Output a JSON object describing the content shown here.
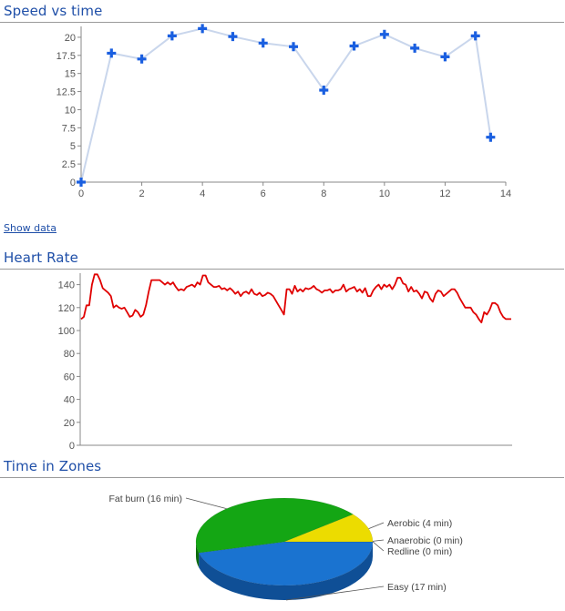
{
  "sections": {
    "speed": {
      "title": "Speed vs time",
      "show_data_label": "Show data"
    },
    "heart": {
      "title": "Heart Rate"
    },
    "zones": {
      "title": "Time in Zones"
    }
  },
  "colors": {
    "title": "#1f4fa8",
    "speed_line": "#c9d6ec",
    "speed_marker": "#1a5fe0",
    "heart_line": "#e00000",
    "axis": "#888888",
    "zone_fatburn": "#14a614",
    "zone_aerobic": "#ecdc00",
    "zone_easy": "#1a73d0"
  },
  "chart_data": [
    {
      "type": "line",
      "title": "Speed vs time",
      "x": [
        0,
        1,
        2,
        3,
        4,
        5,
        6,
        7,
        8,
        9,
        10,
        11,
        12,
        13,
        13.5
      ],
      "series": [
        {
          "values": [
            0,
            17.8,
            17.0,
            20.2,
            21.2,
            20.1,
            19.2,
            18.7,
            12.7,
            18.8,
            20.4,
            18.5,
            17.3,
            20.2,
            6.2
          ]
        }
      ],
      "xlim": [
        0,
        14
      ],
      "ylim": [
        0,
        21.5
      ],
      "xticks": [
        0,
        2,
        4,
        6,
        8,
        10,
        12,
        14
      ],
      "yticks": [
        "0",
        "2.5",
        "5",
        "7.5",
        "10",
        "12.5",
        "15",
        "17.5",
        "20"
      ],
      "marker": "plus",
      "grid": false
    },
    {
      "type": "line",
      "title": "Heart Rate",
      "series": [
        {
          "values": [
            110,
            112,
            122,
            122,
            140,
            149,
            149,
            144,
            137,
            135,
            133,
            130,
            120,
            122,
            120,
            119,
            120,
            116,
            112,
            113,
            118,
            116,
            112,
            114,
            122,
            134,
            144,
            144,
            144,
            144,
            142,
            140,
            142,
            140,
            142,
            138,
            135,
            136,
            135,
            138,
            139,
            140,
            138,
            142,
            140,
            148,
            148,
            142,
            140,
            138,
            138,
            139,
            136,
            137,
            135,
            137,
            135,
            132,
            134,
            130,
            133,
            134,
            132,
            136,
            132,
            131,
            133,
            130,
            131,
            133,
            132,
            130,
            126,
            122,
            118,
            114,
            136,
            136,
            132,
            139,
            134,
            136,
            134,
            137,
            136,
            137,
            139,
            136,
            135,
            133,
            135,
            135,
            136,
            133,
            135,
            135,
            136,
            140,
            134,
            136,
            137,
            138,
            134,
            136,
            133,
            137,
            130,
            130,
            135,
            138,
            140,
            136,
            140,
            138,
            140,
            136,
            140,
            146,
            146,
            141,
            140,
            134,
            138,
            134,
            135,
            132,
            128,
            134,
            133,
            128,
            125,
            132,
            135,
            134,
            130,
            132,
            134,
            136,
            136,
            133,
            128,
            124,
            120,
            120,
            120,
            116,
            114,
            110,
            107,
            116,
            114,
            118,
            124,
            124,
            122,
            116,
            112,
            110,
            110,
            110
          ]
        }
      ],
      "ylim": [
        0,
        150
      ],
      "yticks": [
        "0",
        "20",
        "40",
        "60",
        "80",
        "100",
        "120",
        "140"
      ],
      "grid": false
    },
    {
      "type": "pie",
      "title": "Time in Zones",
      "labels": [
        "Easy (17 min)",
        "Fat burn (16 min)",
        "Aerobic (4 min)",
        "Anaerobic (0 min)",
        "Redline (0 min)"
      ],
      "values": [
        17,
        16,
        4,
        0,
        0
      ],
      "style": "3d"
    }
  ]
}
